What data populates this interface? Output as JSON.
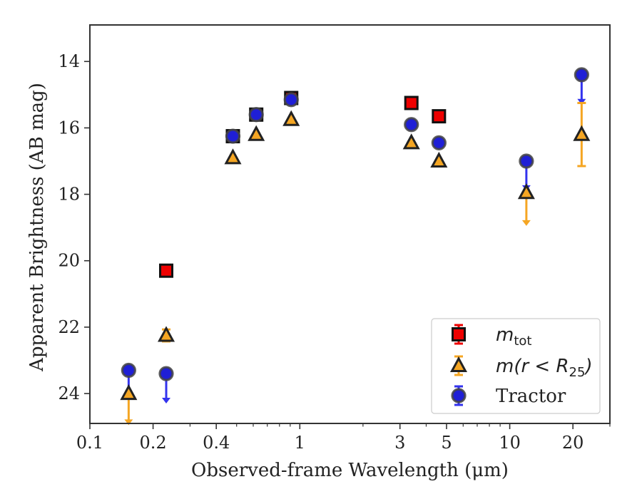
{
  "chart_data": {
    "type": "scatter",
    "xlabel": "Observed-frame Wavelength (μm)",
    "ylabel": "Apparent Brightness (AB mag)",
    "x_scale": "log",
    "xlim": [
      0.1,
      30
    ],
    "ylim": [
      24.9,
      12.9
    ],
    "y_inverted": true,
    "x_ticks": [
      {
        "value": 0.1,
        "label": "0.1"
      },
      {
        "value": 0.2,
        "label": "0.2"
      },
      {
        "value": 0.4,
        "label": "0.4"
      },
      {
        "value": 1,
        "label": "1"
      },
      {
        "value": 3,
        "label": "3"
      },
      {
        "value": 5,
        "label": "5"
      },
      {
        "value": 10,
        "label": "10"
      },
      {
        "value": 20,
        "label": "20"
      }
    ],
    "y_ticks": [
      {
        "value": 14,
        "label": "14"
      },
      {
        "value": 16,
        "label": "16"
      },
      {
        "value": 18,
        "label": "18"
      },
      {
        "value": 20,
        "label": "20"
      },
      {
        "value": 22,
        "label": "22"
      },
      {
        "value": 24,
        "label": "24"
      }
    ],
    "legend_position": "lower-right",
    "series": [
      {
        "name": "Tractor",
        "marker": "circle",
        "color": "#1f1fd6",
        "edge_color": "#444444",
        "errorbar_color": "#3333ee",
        "points": [
          {
            "x": 0.153,
            "y": 23.3,
            "upper_limit": true,
            "arrow_to": 24.2
          },
          {
            "x": 0.231,
            "y": 23.4,
            "upper_limit": true,
            "arrow_to": 24.3
          },
          {
            "x": 0.48,
            "y": 16.25
          },
          {
            "x": 0.62,
            "y": 15.6
          },
          {
            "x": 0.91,
            "y": 15.15
          },
          {
            "x": 3.4,
            "y": 15.9
          },
          {
            "x": 4.6,
            "y": 16.45
          },
          {
            "x": 12.0,
            "y": 17.0,
            "upper_limit": true,
            "arrow_to": 17.9
          },
          {
            "x": 22.0,
            "y": 14.4,
            "upper_limit": true,
            "arrow_to": 15.3
          }
        ]
      },
      {
        "name": "m(r < R25)",
        "marker": "triangle",
        "color": "#f5a623",
        "edge_color": "#222222",
        "errorbar_color": "#f5a623",
        "points": [
          {
            "x": 0.153,
            "y": 24.0,
            "upper_limit": true,
            "arrow_to": 24.95
          },
          {
            "x": 0.231,
            "y": 22.25,
            "err": 0.18
          },
          {
            "x": 0.48,
            "y": 16.9
          },
          {
            "x": 0.62,
            "y": 16.2
          },
          {
            "x": 0.91,
            "y": 15.75
          },
          {
            "x": 3.4,
            "y": 16.45
          },
          {
            "x": 4.6,
            "y": 17.0
          },
          {
            "x": 12.0,
            "y": 17.95,
            "upper_limit": true,
            "arrow_to": 18.95
          },
          {
            "x": 22.0,
            "y": 16.2,
            "err_low": 0.95,
            "err_high": 0.95
          }
        ]
      },
      {
        "name": "m_tot",
        "marker": "square",
        "color": "#ee0000",
        "edge_color": "#111111",
        "errorbar_color": "#ee0000",
        "points": [
          {
            "x": 0.231,
            "y": 20.3
          },
          {
            "x": 0.48,
            "y": 16.25
          },
          {
            "x": 0.62,
            "y": 15.6
          },
          {
            "x": 0.91,
            "y": 15.1
          },
          {
            "x": 3.4,
            "y": 15.25
          },
          {
            "x": 4.6,
            "y": 15.65
          }
        ]
      }
    ],
    "legend": [
      {
        "key": "m_tot",
        "label_main": "m",
        "label_sub": "tot"
      },
      {
        "key": "m(r < R25)",
        "label_main": "m(r < R",
        "label_sub": "25",
        "label_tail": ")"
      },
      {
        "key": "Tractor",
        "label_main": "Tractor"
      }
    ]
  }
}
